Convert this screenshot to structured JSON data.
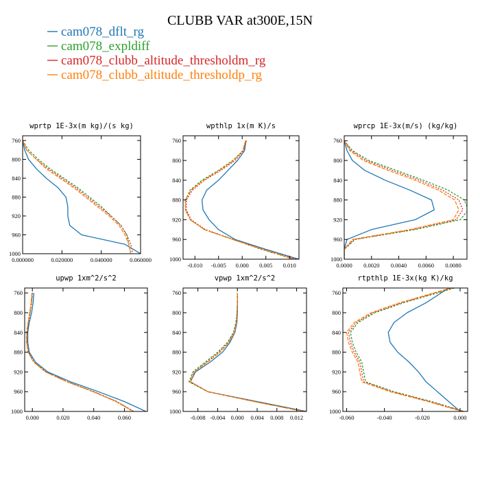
{
  "figure": {
    "title": "CLUBB VAR at300E,15N",
    "legend": [
      {
        "label": "cam078_dflt_rg",
        "color": "#1f77b4"
      },
      {
        "label": "cam078_expldiff",
        "color": "#2ca02c"
      },
      {
        "label": "cam078_clubb_altitude_thresholdm_rg",
        "color": "#d62728"
      },
      {
        "label": "cam078_clubb_altitude_thresholdp_rg",
        "color": "#ff7f0e"
      }
    ]
  },
  "chart_data": [
    {
      "type": "line",
      "title": "wprtp  1E-3x(m kg)/(s kg)",
      "xlim": [
        0.0,
        0.06
      ],
      "ylim": [
        1000,
        750
      ],
      "xticks": [
        0.0,
        0.02,
        0.04,
        0.06
      ],
      "xtick_labels": [
        "0.000000",
        "0.020000",
        "0.040000",
        "0.060000"
      ],
      "yticks": [
        760,
        800,
        840,
        880,
        920,
        960,
        1000
      ],
      "ytick_labels": [
        "760",
        "800",
        "840",
        "880",
        "920",
        "960",
        "1000"
      ],
      "y": [
        760,
        780,
        800,
        820,
        840,
        860,
        880,
        900,
        920,
        940,
        960,
        980,
        1000
      ],
      "series": [
        {
          "name": "cam078_dflt_rg",
          "color": "#1f77b4",
          "x": [
            0.0,
            0.001,
            0.003,
            0.007,
            0.012,
            0.018,
            0.022,
            0.023,
            0.023,
            0.024,
            0.03,
            0.052,
            0.06
          ]
        },
        {
          "name": "cam078_expldiff",
          "color": "#2ca02c",
          "x": [
            0.0,
            0.003,
            0.008,
            0.014,
            0.021,
            0.028,
            0.034,
            0.04,
            0.045,
            0.05,
            0.053,
            0.054,
            0.055
          ]
        },
        {
          "name": "cam078_clubb_altitude_thresholdm_rg",
          "color": "#d62728",
          "x": [
            0.0,
            0.002,
            0.007,
            0.013,
            0.02,
            0.027,
            0.033,
            0.039,
            0.045,
            0.05,
            0.053,
            0.055,
            0.056
          ]
        },
        {
          "name": "cam078_clubb_altitude_thresholdp_rg",
          "color": "#ff7f0e",
          "x": [
            0.0,
            0.002,
            0.007,
            0.012,
            0.019,
            0.026,
            0.032,
            0.038,
            0.044,
            0.049,
            0.052,
            0.054,
            0.055
          ]
        }
      ]
    },
    {
      "type": "line",
      "title": "wpthlp  1x(m K)/s",
      "xlim": [
        -0.0125,
        0.012
      ],
      "ylim": [
        1000,
        750
      ],
      "xticks": [
        -0.01,
        -0.005,
        0.0,
        0.005,
        0.01
      ],
      "xtick_labels": [
        "-0.010",
        "-0.005",
        "0.000",
        "0.005",
        "0.010"
      ],
      "yticks": [
        760,
        800,
        840,
        880,
        920,
        960,
        1000
      ],
      "ytick_labels": [
        "760",
        "800",
        "840",
        "880",
        "920",
        "960",
        "1000"
      ],
      "y": [
        760,
        780,
        800,
        820,
        840,
        860,
        880,
        900,
        920,
        940,
        960,
        980,
        1000
      ],
      "series": [
        {
          "name": "cam078_dflt_rg",
          "color": "#1f77b4",
          "x": [
            0.0008,
            0.0005,
            -0.001,
            -0.003,
            -0.005,
            -0.0075,
            -0.0085,
            -0.0083,
            -0.007,
            -0.005,
            -0.0015,
            0.005,
            0.012
          ]
        },
        {
          "name": "cam078_expldiff",
          "color": "#2ca02c",
          "x": [
            0.0008,
            0.0002,
            -0.002,
            -0.005,
            -0.0085,
            -0.011,
            -0.012,
            -0.012,
            -0.011,
            -0.008,
            -0.002,
            0.004,
            0.011
          ]
        },
        {
          "name": "cam078_clubb_altitude_thresholdm_rg",
          "color": "#d62728",
          "x": [
            0.0009,
            0.0003,
            -0.0015,
            -0.0045,
            -0.008,
            -0.0105,
            -0.0118,
            -0.0118,
            -0.0108,
            -0.0078,
            -0.0018,
            0.0045,
            0.0115
          ]
        },
        {
          "name": "cam078_clubb_altitude_thresholdp_rg",
          "color": "#ff7f0e",
          "x": [
            0.0007,
            0.0001,
            -0.0018,
            -0.0048,
            -0.0082,
            -0.0108,
            -0.012,
            -0.012,
            -0.011,
            -0.008,
            -0.002,
            0.0042,
            0.011
          ]
        }
      ]
    },
    {
      "type": "line",
      "title": "wprcp  1E-3x(m/s) (kg/kg)",
      "xlim": [
        0.0,
        0.009
      ],
      "ylim": [
        1000,
        750
      ],
      "xticks": [
        0.0,
        0.002,
        0.004,
        0.006,
        0.008
      ],
      "xtick_labels": [
        "0.0000",
        "0.0020",
        "0.0040",
        "0.0060",
        "0.0080"
      ],
      "yticks": [
        760,
        800,
        840,
        880,
        920,
        960,
        1000
      ],
      "ytick_labels": [
        "760",
        "800",
        "840",
        "880",
        "920",
        "960",
        "1000"
      ],
      "y": [
        760,
        780,
        800,
        820,
        840,
        860,
        880,
        900,
        920,
        940,
        960,
        980,
        1000
      ],
      "series": [
        {
          "name": "cam078_dflt_rg",
          "color": "#1f77b4",
          "x": [
            0.0,
            0.0002,
            0.0006,
            0.0015,
            0.003,
            0.0048,
            0.0064,
            0.0066,
            0.0052,
            0.002,
            0.0002,
            0.0,
            0.0
          ]
        },
        {
          "name": "cam078_expldiff",
          "color": "#2ca02c",
          "x": [
            0.0,
            0.0006,
            0.0018,
            0.0038,
            0.0058,
            0.0076,
            0.0088,
            0.0091,
            0.0085,
            0.0052,
            0.0008,
            0.0,
            0.0
          ]
        },
        {
          "name": "cam078_clubb_altitude_thresholdm_rg",
          "color": "#d62728",
          "x": [
            0.0,
            0.0005,
            0.0016,
            0.0035,
            0.0055,
            0.0072,
            0.0084,
            0.0087,
            0.0082,
            0.005,
            0.0007,
            0.0,
            0.0
          ]
        },
        {
          "name": "cam078_clubb_altitude_thresholdp_rg",
          "color": "#ff7f0e",
          "x": [
            0.0,
            0.0004,
            0.0014,
            0.0032,
            0.0052,
            0.0069,
            0.0081,
            0.0084,
            0.008,
            0.0048,
            0.0006,
            0.0,
            0.0
          ]
        }
      ]
    },
    {
      "type": "line",
      "title": "upwp  1xm^2/s^2",
      "xlim": [
        -0.005,
        0.075
      ],
      "ylim": [
        1000,
        750
      ],
      "xticks": [
        0.0,
        0.02,
        0.04,
        0.06
      ],
      "xtick_labels": [
        "0.000",
        "0.020",
        "0.040",
        "0.060"
      ],
      "yticks": [
        760,
        800,
        840,
        880,
        920,
        960,
        1000
      ],
      "ytick_labels": [
        "760",
        "800",
        "840",
        "880",
        "920",
        "960",
        "1000"
      ],
      "y": [
        760,
        780,
        800,
        820,
        840,
        860,
        880,
        900,
        920,
        940,
        960,
        980,
        1000
      ],
      "series": [
        {
          "name": "cam078_dflt_rg",
          "color": "#1f77b4",
          "x": [
            0.001,
            0.0005,
            -0.0005,
            -0.002,
            -0.003,
            -0.003,
            -0.002,
            0.002,
            0.01,
            0.025,
            0.043,
            0.06,
            0.074
          ]
        },
        {
          "name": "cam078_expldiff",
          "color": "#2ca02c",
          "x": [
            0.0,
            -0.0005,
            -0.0015,
            -0.0025,
            -0.0035,
            -0.0035,
            -0.0025,
            0.001,
            0.009,
            0.023,
            0.04,
            0.055,
            0.066
          ]
        },
        {
          "name": "cam078_clubb_altitude_thresholdm_rg",
          "color": "#d62728",
          "x": [
            0.0,
            -0.0005,
            -0.0015,
            -0.0025,
            -0.0035,
            -0.0035,
            -0.0025,
            0.001,
            0.009,
            0.023,
            0.04,
            0.055,
            0.066
          ]
        },
        {
          "name": "cam078_clubb_altitude_thresholdp_rg",
          "color": "#ff7f0e",
          "x": [
            -0.0003,
            -0.0008,
            -0.0018,
            -0.0028,
            -0.0038,
            -0.0038,
            -0.0028,
            0.0008,
            0.0085,
            0.0225,
            0.0395,
            0.0545,
            0.0655
          ]
        }
      ]
    },
    {
      "type": "line",
      "title": "vpwp  1xm^2/s^2",
      "xlim": [
        -0.011,
        0.014
      ],
      "ylim": [
        1000,
        750
      ],
      "xticks": [
        -0.008,
        -0.004,
        0.0,
        0.004,
        0.008,
        0.012
      ],
      "xtick_labels": [
        "-0.008",
        "-0.004",
        "0.000",
        "0.004",
        "0.008",
        "0.012"
      ],
      "yticks": [
        760,
        800,
        840,
        880,
        920,
        960,
        1000
      ],
      "ytick_labels": [
        "760",
        "800",
        "840",
        "880",
        "920",
        "960",
        "1000"
      ],
      "y": [
        760,
        780,
        800,
        820,
        840,
        860,
        880,
        900,
        920,
        940,
        960,
        980,
        1000
      ],
      "series": [
        {
          "name": "cam078_dflt_rg",
          "color": "#1f77b4",
          "x": [
            0.0,
            0.0,
            0.0,
            -0.0001,
            -0.0005,
            -0.0015,
            -0.003,
            -0.0055,
            -0.0085,
            -0.0095,
            -0.006,
            0.004,
            0.014
          ]
        },
        {
          "name": "cam078_expldiff",
          "color": "#2ca02c",
          "x": [
            0.0,
            0.0,
            -0.0001,
            -0.0003,
            -0.0008,
            -0.002,
            -0.004,
            -0.0065,
            -0.009,
            -0.0098,
            -0.006,
            0.0035,
            0.0135
          ]
        },
        {
          "name": "cam078_clubb_altitude_thresholdm_rg",
          "color": "#d62728",
          "x": [
            0.0,
            0.0,
            -0.0001,
            -0.0002,
            -0.0007,
            -0.0018,
            -0.0037,
            -0.0062,
            -0.0088,
            -0.0096,
            -0.006,
            0.0035,
            0.0135
          ]
        },
        {
          "name": "cam078_clubb_altitude_thresholdp_rg",
          "color": "#ff7f0e",
          "x": [
            0.0,
            0.0,
            -0.0001,
            -0.0002,
            -0.0006,
            -0.0017,
            -0.0035,
            -0.006,
            -0.0087,
            -0.0095,
            -0.006,
            0.0034,
            0.0133
          ]
        }
      ]
    },
    {
      "type": "line",
      "title": "rtpthlp  1E-3x(kg K)/kg",
      "xlim": [
        -0.062,
        0.004
      ],
      "ylim": [
        1000,
        750
      ],
      "xticks": [
        -0.06,
        -0.04,
        -0.02,
        0.0
      ],
      "xtick_labels": [
        "-0.060",
        "-0.040",
        "-0.020",
        "0.000"
      ],
      "yticks": [
        760,
        800,
        840,
        880,
        920,
        960,
        1000
      ],
      "ytick_labels": [
        "760",
        "800",
        "840",
        "880",
        "920",
        "960",
        "1000"
      ],
      "y": [
        750,
        760,
        780,
        800,
        820,
        840,
        860,
        880,
        900,
        920,
        940,
        960,
        980,
        1000
      ],
      "series": [
        {
          "name": "cam078_dflt_rg",
          "color": "#1f77b4",
          "x": [
            -0.006,
            -0.01,
            -0.018,
            -0.028,
            -0.035,
            -0.038,
            -0.037,
            -0.033,
            -0.027,
            -0.022,
            -0.018,
            -0.012,
            -0.006,
            0.0
          ]
        },
        {
          "name": "cam078_expldiff",
          "color": "#2ca02c",
          "x": [
            -0.003,
            -0.012,
            -0.03,
            -0.045,
            -0.054,
            -0.058,
            -0.057,
            -0.055,
            -0.052,
            -0.051,
            -0.05,
            -0.035,
            -0.015,
            0.002
          ]
        },
        {
          "name": "cam078_clubb_altitude_thresholdm_rg",
          "color": "#d62728",
          "x": [
            -0.004,
            -0.013,
            -0.031,
            -0.046,
            -0.055,
            -0.059,
            -0.058,
            -0.056,
            -0.053,
            -0.052,
            -0.051,
            -0.036,
            -0.016,
            0.002
          ]
        },
        {
          "name": "cam078_clubb_altitude_thresholdp_rg",
          "color": "#ff7f0e",
          "x": [
            -0.005,
            -0.014,
            -0.032,
            -0.047,
            -0.056,
            -0.06,
            -0.059,
            -0.057,
            -0.054,
            -0.053,
            -0.052,
            -0.037,
            -0.017,
            0.001
          ]
        }
      ]
    }
  ]
}
